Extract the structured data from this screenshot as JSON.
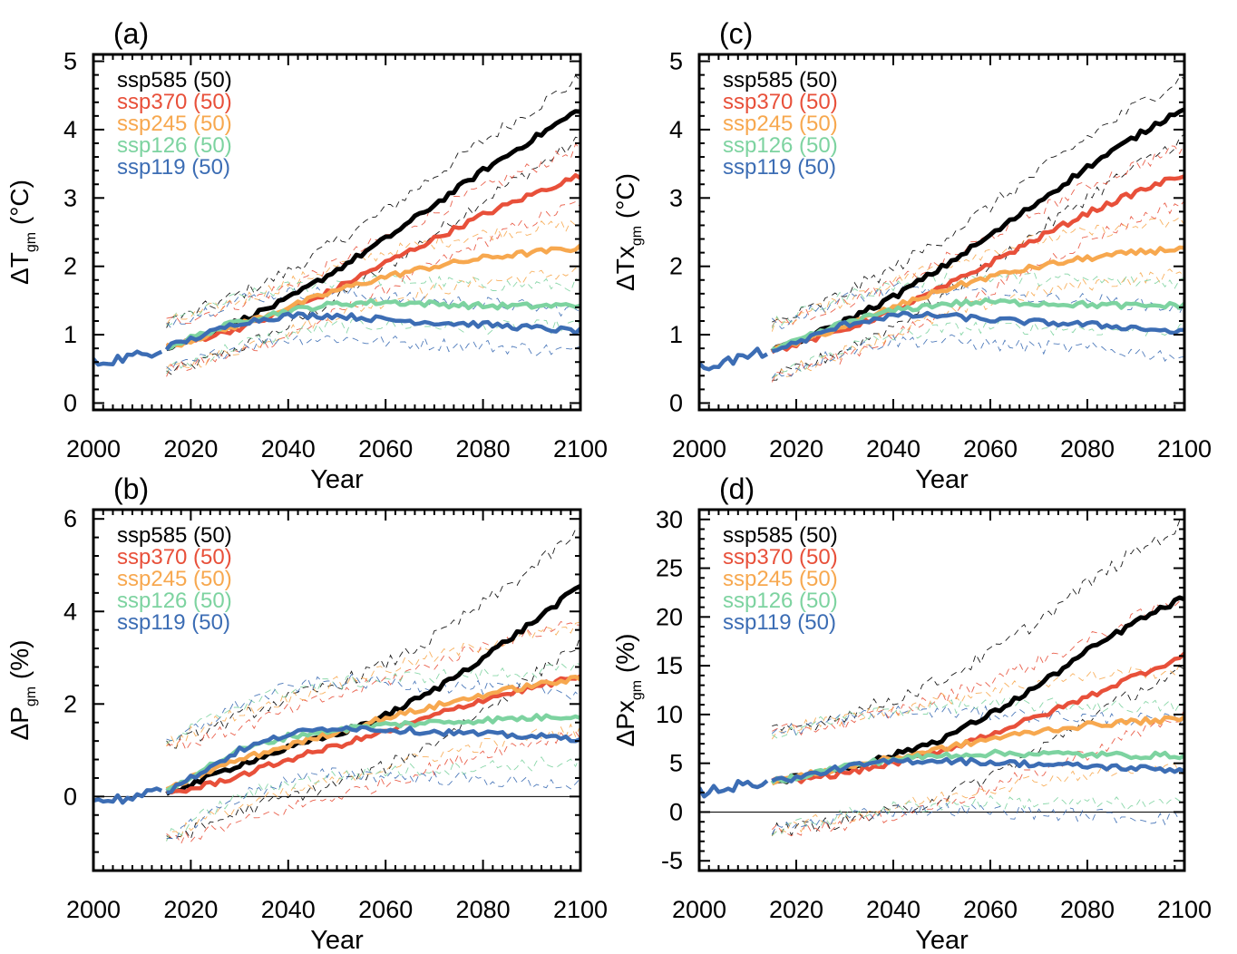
{
  "figure": {
    "x_axis_label": "Year"
  },
  "scenario_colors": {
    "ssp585": "#000000",
    "ssp370": "#e8503a",
    "ssp245": "#f7a84f",
    "ssp126": "#7dd3a0",
    "ssp119": "#3c6db4"
  },
  "chart_data": [
    {
      "id": "a",
      "panel_label": "(a)",
      "type": "line",
      "ylabel_main": "ΔT",
      "ylabel_sub": "gm",
      "ylabel_unit": " (°C)",
      "xlabel": "Year",
      "xlim": [
        2000,
        2100
      ],
      "ylim": [
        -0.1,
        5.1
      ],
      "xticks": [
        2000,
        2020,
        2040,
        2060,
        2080,
        2100
      ],
      "yticks": [
        0,
        1,
        2,
        3,
        4,
        5
      ],
      "zero_line": false,
      "legend": [
        "ssp585 (50)",
        "ssp370 (50)",
        "ssp245 (50)",
        "ssp126 (50)",
        "ssp119 (50)"
      ],
      "historical": {
        "x": [
          2000,
          2005,
          2010,
          2014
        ],
        "y": [
          0.58,
          0.65,
          0.7,
          0.8
        ]
      },
      "series": [
        {
          "scenario": "ssp585",
          "x": [
            2015,
            2020,
            2030,
            2040,
            2050,
            2060,
            2070,
            2080,
            2090,
            2100
          ],
          "y": [
            0.82,
            0.92,
            1.2,
            1.52,
            1.95,
            2.4,
            2.9,
            3.4,
            3.85,
            4.3
          ],
          "spread": [
            0.38,
            0.45
          ]
        },
        {
          "scenario": "ssp370",
          "x": [
            2015,
            2020,
            2030,
            2040,
            2050,
            2060,
            2070,
            2080,
            2090,
            2100
          ],
          "y": [
            0.82,
            0.9,
            1.1,
            1.35,
            1.68,
            2.05,
            2.4,
            2.75,
            3.05,
            3.33
          ],
          "spread": [
            0.35,
            0.4
          ]
        },
        {
          "scenario": "ssp245",
          "x": [
            2015,
            2020,
            2030,
            2040,
            2050,
            2060,
            2070,
            2080,
            2090,
            2100
          ],
          "y": [
            0.82,
            0.92,
            1.15,
            1.4,
            1.65,
            1.85,
            2.0,
            2.12,
            2.2,
            2.27
          ],
          "spread": [
            0.35,
            0.35
          ]
        },
        {
          "scenario": "ssp126",
          "x": [
            2015,
            2020,
            2030,
            2040,
            2050,
            2060,
            2070,
            2080,
            2090,
            2100
          ],
          "y": [
            0.82,
            0.95,
            1.2,
            1.35,
            1.45,
            1.48,
            1.45,
            1.42,
            1.42,
            1.43
          ],
          "spread": [
            0.35,
            0.3
          ]
        },
        {
          "scenario": "ssp119",
          "x": [
            2015,
            2020,
            2030,
            2040,
            2050,
            2060,
            2070,
            2080,
            2090,
            2100
          ],
          "y": [
            0.82,
            0.93,
            1.18,
            1.28,
            1.28,
            1.22,
            1.18,
            1.15,
            1.1,
            1.05
          ],
          "spread": [
            0.35,
            0.3
          ]
        }
      ]
    },
    {
      "id": "c",
      "panel_label": "(c)",
      "type": "line",
      "ylabel_main": "ΔTx",
      "ylabel_sub": "gm",
      "ylabel_unit": " (°C)",
      "xlabel": "Year",
      "xlim": [
        2000,
        2100
      ],
      "ylim": [
        -0.1,
        5.1
      ],
      "xticks": [
        2000,
        2020,
        2040,
        2060,
        2080,
        2100
      ],
      "yticks": [
        0,
        1,
        2,
        3,
        4,
        5
      ],
      "zero_line": false,
      "legend": [
        "ssp585 (50)",
        "ssp370 (50)",
        "ssp245 (50)",
        "ssp126 (50)",
        "ssp119 (50)"
      ],
      "historical": {
        "x": [
          2000,
          2005,
          2010,
          2014
        ],
        "y": [
          0.52,
          0.6,
          0.68,
          0.76
        ]
      },
      "series": [
        {
          "scenario": "ssp585",
          "x": [
            2015,
            2020,
            2030,
            2040,
            2050,
            2060,
            2070,
            2080,
            2090,
            2100
          ],
          "y": [
            0.76,
            0.88,
            1.2,
            1.55,
            1.98,
            2.45,
            2.95,
            3.45,
            3.9,
            4.33
          ],
          "spread": [
            0.4,
            0.45
          ]
        },
        {
          "scenario": "ssp370",
          "x": [
            2015,
            2020,
            2030,
            2040,
            2050,
            2060,
            2070,
            2080,
            2090,
            2100
          ],
          "y": [
            0.76,
            0.86,
            1.08,
            1.35,
            1.68,
            2.05,
            2.42,
            2.78,
            3.08,
            3.35
          ],
          "spread": [
            0.38,
            0.4
          ]
        },
        {
          "scenario": "ssp245",
          "x": [
            2015,
            2020,
            2030,
            2040,
            2050,
            2060,
            2070,
            2080,
            2090,
            2100
          ],
          "y": [
            0.76,
            0.88,
            1.13,
            1.4,
            1.65,
            1.85,
            2.0,
            2.12,
            2.2,
            2.27
          ],
          "spread": [
            0.38,
            0.38
          ]
        },
        {
          "scenario": "ssp126",
          "x": [
            2015,
            2020,
            2030,
            2040,
            2050,
            2060,
            2070,
            2080,
            2090,
            2100
          ],
          "y": [
            0.76,
            0.9,
            1.18,
            1.35,
            1.45,
            1.48,
            1.46,
            1.44,
            1.42,
            1.43
          ],
          "spread": [
            0.38,
            0.35
          ]
        },
        {
          "scenario": "ssp119",
          "x": [
            2015,
            2020,
            2030,
            2040,
            2050,
            2060,
            2070,
            2080,
            2090,
            2100
          ],
          "y": [
            0.76,
            0.88,
            1.15,
            1.28,
            1.28,
            1.22,
            1.18,
            1.15,
            1.1,
            1.03
          ],
          "spread": [
            0.38,
            0.35
          ]
        }
      ]
    },
    {
      "id": "b",
      "panel_label": "(b)",
      "type": "line",
      "ylabel_main": "ΔP",
      "ylabel_sub": "gm",
      "ylabel_unit": " (%)",
      "xlabel": "Year",
      "xlim": [
        2000,
        2100
      ],
      "ylim": [
        -1.6,
        6.2
      ],
      "xticks": [
        2000,
        2020,
        2040,
        2060,
        2080,
        2100
      ],
      "yticks": [
        0,
        2,
        4,
        6
      ],
      "zero_line": true,
      "legend": [
        "ssp585 (50)",
        "ssp370 (50)",
        "ssp245 (50)",
        "ssp126 (50)",
        "ssp119 (50)"
      ],
      "historical": {
        "x": [
          2000,
          2005,
          2010,
          2014
        ],
        "y": [
          -0.1,
          -0.05,
          0.0,
          0.1
        ]
      },
      "series": [
        {
          "scenario": "ssp585",
          "x": [
            2015,
            2020,
            2030,
            2040,
            2050,
            2060,
            2070,
            2080,
            2090,
            2100
          ],
          "y": [
            0.1,
            0.25,
            0.7,
            1.05,
            1.35,
            1.75,
            2.3,
            3.0,
            3.75,
            4.55
          ],
          "spread": [
            1.0,
            1.2
          ]
        },
        {
          "scenario": "ssp370",
          "x": [
            2015,
            2020,
            2030,
            2040,
            2050,
            2060,
            2070,
            2080,
            2090,
            2100
          ],
          "y": [
            0.1,
            0.15,
            0.45,
            0.8,
            1.1,
            1.4,
            1.75,
            2.1,
            2.35,
            2.6
          ],
          "spread": [
            1.0,
            1.2
          ]
        },
        {
          "scenario": "ssp245",
          "x": [
            2015,
            2020,
            2030,
            2040,
            2050,
            2060,
            2070,
            2080,
            2090,
            2100
          ],
          "y": [
            0.1,
            0.4,
            0.8,
            1.1,
            1.4,
            1.7,
            1.95,
            2.2,
            2.4,
            2.55
          ],
          "spread": [
            1.0,
            1.1
          ]
        },
        {
          "scenario": "ssp126",
          "x": [
            2015,
            2020,
            2030,
            2040,
            2050,
            2060,
            2070,
            2080,
            2090,
            2100
          ],
          "y": [
            0.1,
            0.45,
            1.0,
            1.3,
            1.45,
            1.55,
            1.6,
            1.65,
            1.7,
            1.75
          ],
          "spread": [
            1.0,
            1.0
          ]
        },
        {
          "scenario": "ssp119",
          "x": [
            2015,
            2020,
            2030,
            2040,
            2050,
            2060,
            2070,
            2080,
            2090,
            2100
          ],
          "y": [
            0.1,
            0.4,
            1.0,
            1.35,
            1.5,
            1.45,
            1.4,
            1.35,
            1.3,
            1.25
          ],
          "spread": [
            1.0,
            1.0
          ]
        }
      ]
    },
    {
      "id": "d",
      "panel_label": "(d)",
      "type": "line",
      "ylabel_main": "ΔPx",
      "ylabel_sub": "gm",
      "ylabel_unit": " (%)",
      "xlabel": "Year",
      "xlim": [
        2000,
        2100
      ],
      "ylim": [
        -6,
        31
      ],
      "xticks": [
        2000,
        2020,
        2040,
        2060,
        2080,
        2100
      ],
      "yticks": [
        -5,
        0,
        5,
        10,
        15,
        20,
        25,
        30
      ],
      "zero_line": true,
      "legend": [
        "ssp585 (50)",
        "ssp370 (50)",
        "ssp245 (50)",
        "ssp126 (50)",
        "ssp119 (50)"
      ],
      "historical": {
        "x": [
          2000,
          2005,
          2010,
          2014
        ],
        "y": [
          2.0,
          2.5,
          2.8,
          3.2
        ]
      },
      "series": [
        {
          "scenario": "ssp585",
          "x": [
            2015,
            2020,
            2030,
            2040,
            2050,
            2060,
            2070,
            2080,
            2090,
            2100
          ],
          "y": [
            3.2,
            3.5,
            4.5,
            5.8,
            7.5,
            10.0,
            13.0,
            16.5,
            19.5,
            22.0
          ],
          "spread": [
            5.0,
            7.5
          ]
        },
        {
          "scenario": "ssp370",
          "x": [
            2015,
            2020,
            2030,
            2040,
            2050,
            2060,
            2070,
            2080,
            2090,
            2100
          ],
          "y": [
            3.2,
            3.3,
            4.0,
            5.0,
            6.3,
            8.0,
            9.8,
            11.8,
            14.0,
            16.0
          ],
          "spread": [
            5.0,
            6.0
          ]
        },
        {
          "scenario": "ssp245",
          "x": [
            2015,
            2020,
            2030,
            2040,
            2050,
            2060,
            2070,
            2080,
            2090,
            2100
          ],
          "y": [
            3.2,
            3.6,
            4.6,
            5.5,
            6.5,
            7.5,
            8.3,
            8.9,
            9.3,
            9.5
          ],
          "spread": [
            5.0,
            5.0
          ]
        },
        {
          "scenario": "ssp126",
          "x": [
            2015,
            2020,
            2030,
            2040,
            2050,
            2060,
            2070,
            2080,
            2090,
            2100
          ],
          "y": [
            3.2,
            3.6,
            4.7,
            5.4,
            5.8,
            6.0,
            6.0,
            5.9,
            5.8,
            5.8
          ],
          "spread": [
            5.0,
            5.0
          ]
        },
        {
          "scenario": "ssp119",
          "x": [
            2015,
            2020,
            2030,
            2040,
            2050,
            2060,
            2070,
            2080,
            2090,
            2100
          ],
          "y": [
            3.2,
            3.5,
            4.6,
            5.2,
            5.3,
            5.1,
            4.9,
            4.7,
            4.5,
            4.3
          ],
          "spread": [
            5.0,
            5.0
          ]
        }
      ]
    }
  ]
}
